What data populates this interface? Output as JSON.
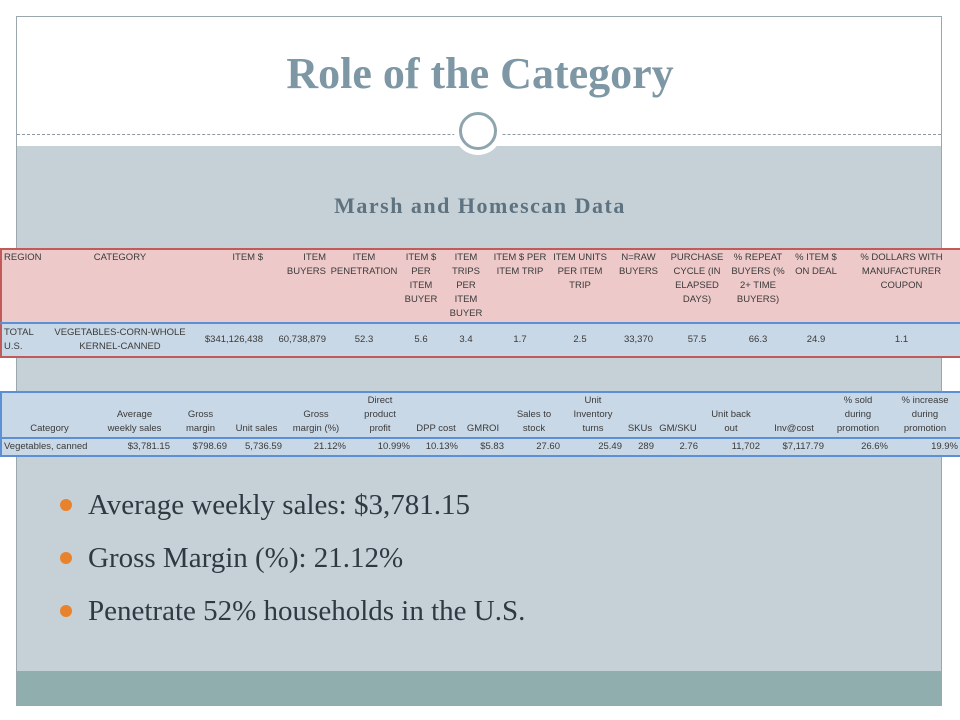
{
  "slide": {
    "title": "Role of the Category",
    "subtitle": "Marsh and Homescan Data"
  },
  "homescan_table": {
    "headers": [
      "REGION",
      "CATEGORY",
      "ITEM $",
      "ITEM BUYERS",
      "ITEM\nPENETRATION",
      "ITEM $\nPER\nITEM\nBUYER",
      "ITEM TRIPS\nPER\nITEM\nBUYER",
      "ITEM $ PER\nITEM TRIP",
      "ITEM UNITS\nPER ITEM\nTRIP",
      "N=RAW\nBUYERS",
      "PURCHASE\nCYCLE (IN\nELAPSED\nDAYS)",
      "% REPEAT\nBUYERS (%\n2+ TIME\nBUYERS)",
      "% ITEM $\nON DEAL",
      "% DOLLARS WITH\nMANUFACTURER\nCOUPON"
    ],
    "row": [
      "TOTAL\nU.S.",
      "VEGETABLES-CORN-WHOLE\nKERNEL-CANNED",
      "$341,126,438",
      "60,738,879",
      "52.3",
      "5.6",
      "3.4",
      "1.7",
      "2.5",
      "33,370",
      "57.5",
      "66.3",
      "24.9",
      "1.1"
    ]
  },
  "marsh_table": {
    "headers": [
      "Category",
      "Average\nweekly sales",
      "Gross\nmargin",
      "Unit sales",
      "Gross\nmargin (%)",
      "Direct\nproduct\nprofit",
      "DPP cost",
      "GMROI",
      "Sales to\nstock",
      "Unit\nInventory\nturns",
      "SKUs",
      "GM/SKU",
      "Unit back\nout",
      "Inv@cost",
      "% sold\nduring\npromotion",
      "% increase\nduring\npromotion"
    ],
    "row": [
      "Vegetables, canned",
      "$3,781.15",
      "$798.69",
      "5,736.59",
      "21.12%",
      "10.99%",
      "10.13%",
      "$5.83",
      "27.60",
      "25.49",
      "289",
      "2.76",
      "11,702",
      "$7,117.79",
      "26.6%",
      "19.9%"
    ]
  },
  "bullets": [
    "Average weekly sales: $3,781.15",
    "Gross Margin (%): 21.12%",
    "Penetrate 52% households in the U.S."
  ],
  "colors": {
    "title": "#7e97a5",
    "body_bg": "#c6d1d7",
    "footer": "#8faead",
    "bullet": "#e8822d"
  }
}
